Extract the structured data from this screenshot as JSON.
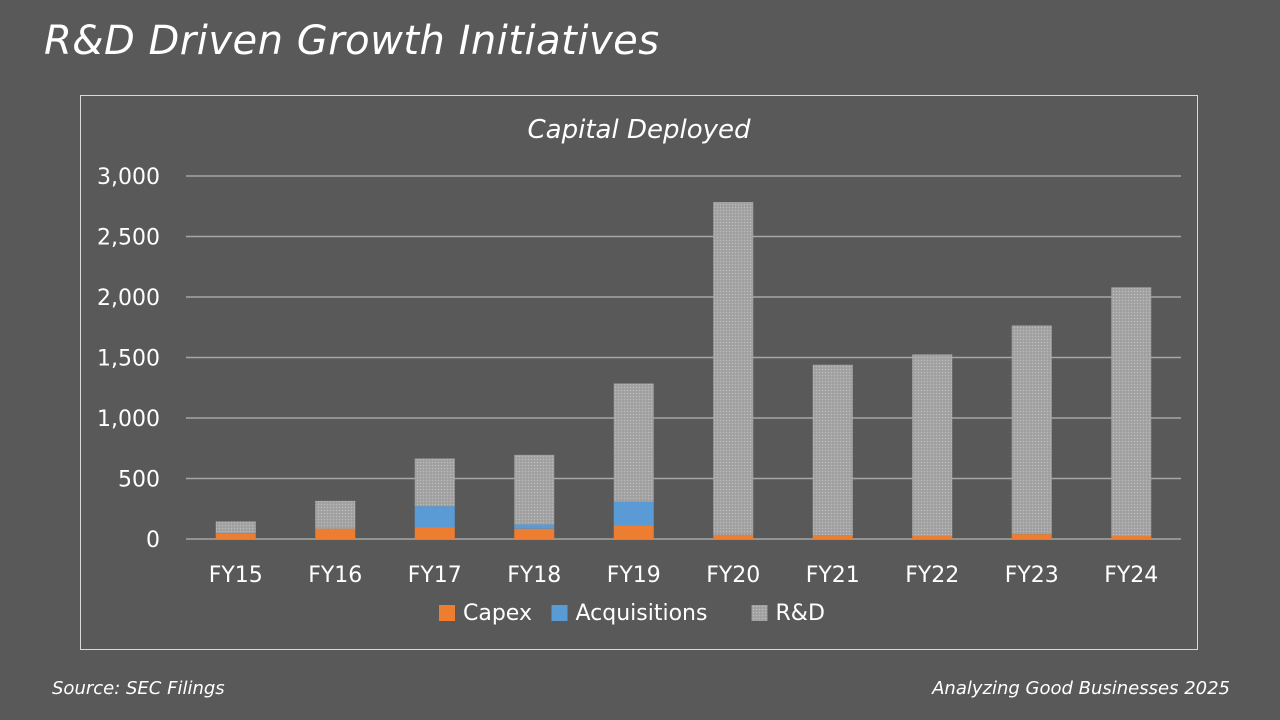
{
  "slide": {
    "title": "R&D Driven Growth Initiatives",
    "source": "Source: SEC Filings",
    "credit": "Analyzing Good Businesses  2025"
  },
  "colors": {
    "capex": "#ED7D31",
    "acquisitions": "#5B9BD5",
    "rnd": "#A5A5A5",
    "gridline": "#A6A6A6",
    "background": "#595959"
  },
  "chart_data": {
    "type": "bar",
    "stacked": true,
    "title": "Capital Deployed",
    "xlabel": "",
    "ylabel": "",
    "categories": [
      "FY15",
      "FY16",
      "FY17",
      "FY18",
      "FY19",
      "FY20",
      "FY21",
      "FY22",
      "FY23",
      "FY24"
    ],
    "series": [
      {
        "name": "Capex",
        "color": "#ED7D31",
        "values": [
          45,
          85,
          95,
          85,
          115,
          35,
          30,
          25,
          40,
          25
        ]
      },
      {
        "name": "Acquisitions",
        "color": "#5B9BD5",
        "values": [
          5,
          0,
          175,
          35,
          195,
          0,
          0,
          0,
          0,
          0
        ]
      },
      {
        "name": "R&D",
        "color": "#A5A5A5",
        "values": [
          95,
          230,
          395,
          575,
          975,
          2750,
          1410,
          1500,
          1725,
          2055
        ]
      }
    ],
    "ylim": [
      0,
      3000
    ],
    "yticks": [
      0,
      500,
      1000,
      1500,
      2000,
      2500,
      3000
    ],
    "ytick_labels": [
      "0",
      "500",
      "1,000",
      "1,500",
      "2,000",
      "2,500",
      "3,000"
    ],
    "grid": true,
    "legend": "bottom"
  }
}
